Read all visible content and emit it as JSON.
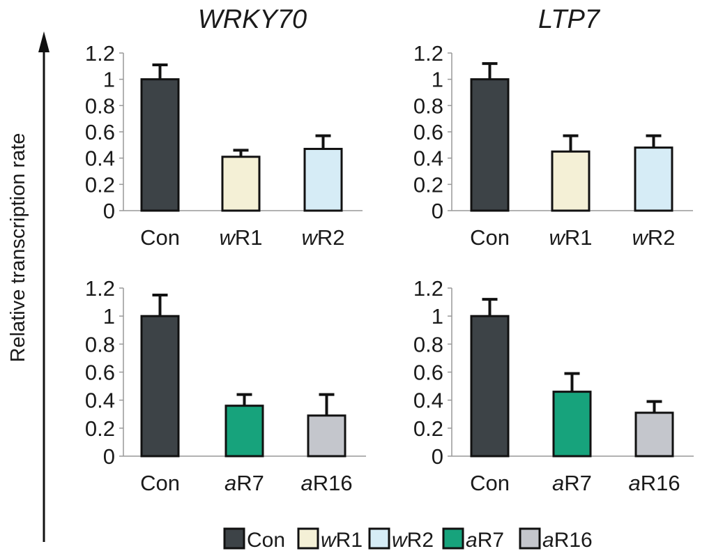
{
  "ylabel": "Relative transcription rate",
  "colors": {
    "Con": "#3d4347",
    "wR1": "#f4f0d6",
    "wR2": "#d6ecf6",
    "aR7": "#17a37c",
    "aR16": "#c4c6cc"
  },
  "legend": [
    {
      "key": "Con",
      "prefix": "",
      "rest": "Con"
    },
    {
      "key": "wR1",
      "prefix": "w",
      "rest": "R1"
    },
    {
      "key": "wR2",
      "prefix": "w",
      "rest": "R2"
    },
    {
      "key": "aR7",
      "prefix": "a",
      "rest": "R7"
    },
    {
      "key": "aR16",
      "prefix": "a",
      "rest": "R16"
    }
  ],
  "chart_data": [
    {
      "type": "bar",
      "title": "WRKY70",
      "ylim": [
        0,
        1.2
      ],
      "yticks": [
        "1.2",
        "1",
        "0.8",
        "0.6",
        "0.4",
        "0.2",
        "0"
      ],
      "categories": [
        {
          "key": "Con",
          "prefix": "",
          "rest": "Con"
        },
        {
          "key": "wR1",
          "prefix": "w",
          "rest": "R1"
        },
        {
          "key": "wR2",
          "prefix": "w",
          "rest": "R2"
        }
      ],
      "values": [
        1.0,
        0.41,
        0.47
      ],
      "errors": [
        0.11,
        0.05,
        0.1
      ]
    },
    {
      "type": "bar",
      "title": "LTP7",
      "ylim": [
        0,
        1.2
      ],
      "yticks": [
        "1.2",
        "1",
        "0.8",
        "0.6",
        "0.4",
        "0.2",
        "0"
      ],
      "categories": [
        {
          "key": "Con",
          "prefix": "",
          "rest": "Con"
        },
        {
          "key": "wR1",
          "prefix": "w",
          "rest": "R1"
        },
        {
          "key": "wR2",
          "prefix": "w",
          "rest": "R2"
        }
      ],
      "values": [
        1.0,
        0.45,
        0.48
      ],
      "errors": [
        0.12,
        0.12,
        0.09
      ]
    },
    {
      "type": "bar",
      "title": "",
      "ylim": [
        0,
        1.2
      ],
      "yticks": [
        "1.2",
        "1",
        "0.8",
        "0.6",
        "0.4",
        "0.2",
        "0"
      ],
      "categories": [
        {
          "key": "Con",
          "prefix": "",
          "rest": "Con"
        },
        {
          "key": "aR7",
          "prefix": "a",
          "rest": "R7"
        },
        {
          "key": "aR16",
          "prefix": "a",
          "rest": "R16"
        }
      ],
      "values": [
        1.0,
        0.36,
        0.29
      ],
      "errors": [
        0.15,
        0.08,
        0.15
      ]
    },
    {
      "type": "bar",
      "title": "",
      "ylim": [
        0,
        1.2
      ],
      "yticks": [
        "1.2",
        "1",
        "0.8",
        "0.6",
        "0.4",
        "0.2",
        "0"
      ],
      "categories": [
        {
          "key": "Con",
          "prefix": "",
          "rest": "Con"
        },
        {
          "key": "aR7",
          "prefix": "a",
          "rest": "R7"
        },
        {
          "key": "aR16",
          "prefix": "a",
          "rest": "R16"
        }
      ],
      "values": [
        1.0,
        0.46,
        0.31
      ],
      "errors": [
        0.12,
        0.13,
        0.08
      ]
    }
  ]
}
